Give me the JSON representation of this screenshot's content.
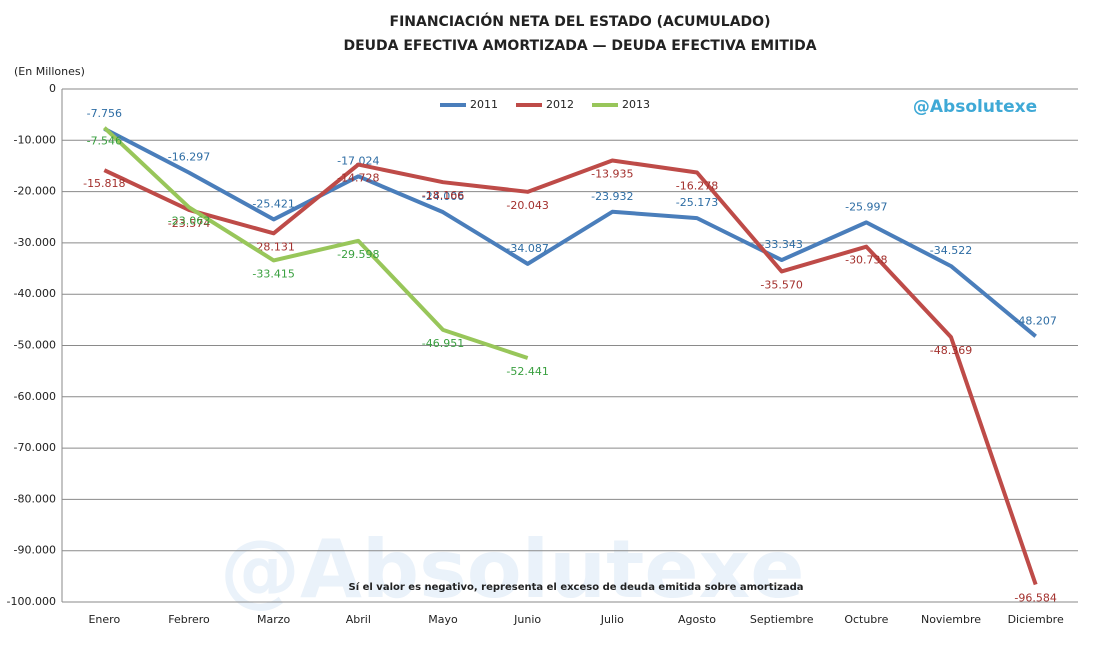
{
  "chart_data": {
    "type": "line",
    "title": "FINANCIACIÓN NETA DEL ESTADO (ACUMULADO)",
    "subtitle": "DEUDA EFECTIVA AMORTIZADA — DEUDA EFECTIVA EMITIDA",
    "y_label": "(En Millones)",
    "annotation": "Sí el valor es negativo, representa el exceso de deuda emitida sobre amortizada",
    "watermark": "@Absolutexe",
    "categories": [
      "Enero",
      "Febrero",
      "Marzo",
      "Abril",
      "Mayo",
      "Junio",
      "Julio",
      "Agosto",
      "Septiembre",
      "Octubre",
      "Noviembre",
      "Diciembre"
    ],
    "series": [
      {
        "name": "2011",
        "color": "#4a7ebb",
        "label_color": "#2e6da4",
        "values": [
          -7756,
          -16297,
          -25421,
          -17024,
          -24006,
          -34087,
          -23932,
          -25173,
          -33343,
          -25997,
          -34522,
          -48207
        ],
        "value_labels": [
          "-7.756",
          "-16.297",
          "-25.421",
          "-17.024",
          "-24.006",
          "-34.087",
          "-23.932",
          "-25.173",
          "-33.343",
          "-25.997",
          "-34.522",
          "-48.207"
        ]
      },
      {
        "name": "2012",
        "color": "#be4b48",
        "label_color": "#a3302d",
        "values": [
          -15818,
          -23574,
          -28131,
          -14728,
          -18166,
          -20043,
          -13935,
          -16278,
          -35570,
          -30738,
          -48369,
          -96584
        ],
        "value_labels": [
          "-15.818",
          "-23.574",
          "-28.131",
          "-14.728",
          "-18.166",
          "-20.043",
          "-13.935",
          "-16.278",
          "-35.570",
          "-30.738",
          "-48.369",
          "-96.584"
        ]
      },
      {
        "name": "2013",
        "color": "#98c65a",
        "label_color": "#3aa040",
        "values": [
          -7546,
          -23063,
          -33415,
          -29598,
          -46951,
          -52441,
          null,
          null,
          null,
          null,
          null,
          null
        ],
        "value_labels": [
          "-7.546",
          "-23.063",
          "-33.415",
          "-29.598",
          "-46.951",
          "-52.441",
          null,
          null,
          null,
          null,
          null,
          null
        ]
      }
    ],
    "ylim": [
      -100000,
      0
    ],
    "yticks": [
      0,
      {
        "value": -10000,
        "label": "-10.000"
      },
      {
        "value": -20000,
        "label": "-20.000"
      },
      {
        "value": -30000,
        "label": "-30.000"
      },
      {
        "value": -40000,
        "label": "-40.000"
      },
      {
        "value": -50000,
        "label": "-50.000"
      },
      {
        "value": -60000,
        "label": "-60.000"
      },
      {
        "value": -70000,
        "label": "-70.000"
      },
      {
        "value": -80000,
        "label": "-80.000"
      },
      {
        "value": -90000,
        "label": "-90.000"
      },
      {
        "value": -100000,
        "label": "-100.000"
      }
    ],
    "grid": true,
    "legend": "top"
  }
}
